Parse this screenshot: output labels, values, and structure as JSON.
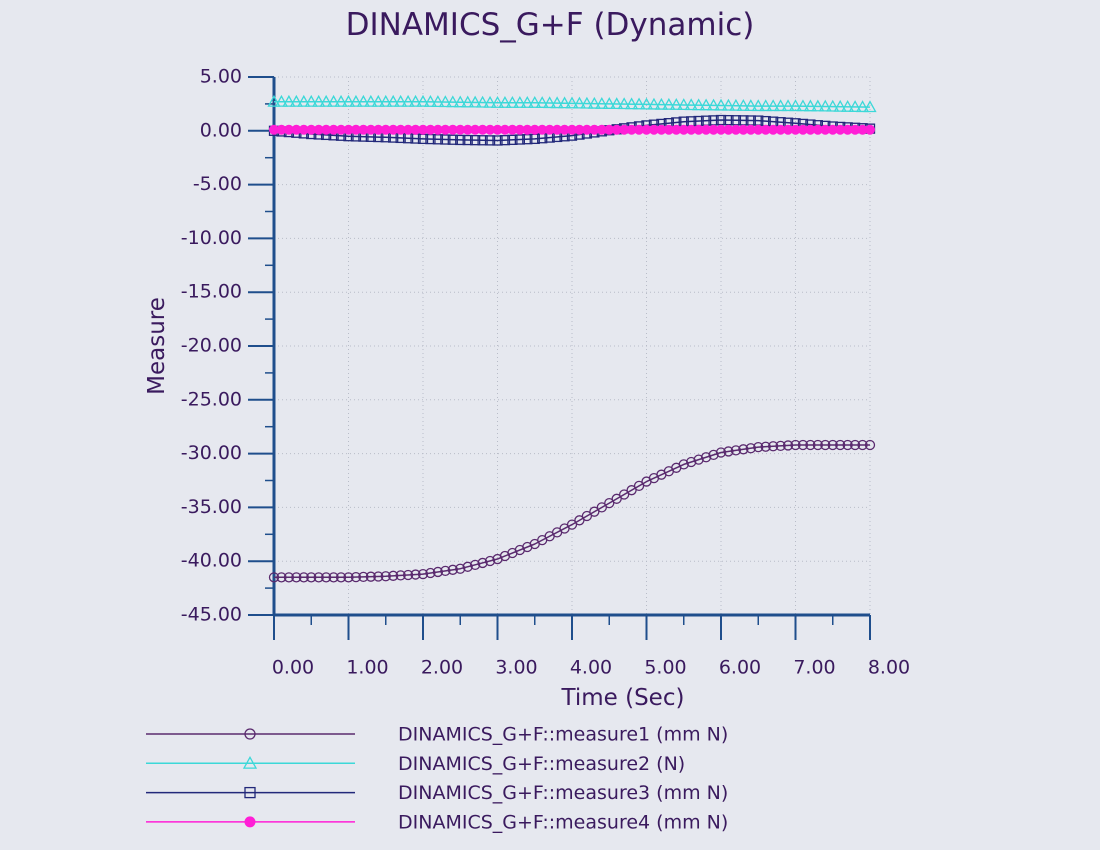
{
  "chart_data": {
    "type": "line",
    "title": "DINAMICS_G+F (Dynamic)",
    "xlabel": "Time (Sec)",
    "ylabel": "Measure",
    "xlim": [
      0,
      8
    ],
    "ylim": [
      -45,
      5
    ],
    "grid": true,
    "x_ticks": [
      "0.00",
      "1.00",
      "2.00",
      "3.00",
      "4.00",
      "5.00",
      "6.00",
      "7.00",
      "8.00"
    ],
    "y_ticks": [
      "5.00",
      "0.00",
      "-5.00",
      "-10.00",
      "-15.00",
      "-20.00",
      "-25.00",
      "-30.00",
      "-35.00",
      "-40.00",
      "-45.00"
    ],
    "legend_position": "bottom",
    "x": [
      0,
      0.5,
      1,
      1.5,
      2,
      2.5,
      3,
      3.5,
      4,
      4.5,
      5,
      5.5,
      6,
      6.5,
      7,
      7.5,
      8
    ],
    "series": [
      {
        "name": "DINAMICS_G+F::measure1 (mm N)",
        "color": "#5a2a6e",
        "marker": "circle-open",
        "values": [
          -41.5,
          -41.5,
          -41.5,
          -41.4,
          -41.2,
          -40.7,
          -39.8,
          -38.4,
          -36.6,
          -34.6,
          -32.6,
          -31.0,
          -29.9,
          -29.4,
          -29.2,
          -29.2,
          -29.2
        ]
      },
      {
        "name": "DINAMICS_G+F::measure2 (N)",
        "color": "#3cd8d8",
        "marker": "triangle-open",
        "values": [
          2.7,
          2.7,
          2.7,
          2.7,
          2.7,
          2.65,
          2.6,
          2.6,
          2.55,
          2.5,
          2.45,
          2.4,
          2.35,
          2.3,
          2.3,
          2.25,
          2.2
        ]
      },
      {
        "name": "DINAMICS_G+F::measure3 (mm N)",
        "color": "#22287a",
        "marker": "square-open",
        "values": [
          0.0,
          -0.3,
          -0.5,
          -0.6,
          -0.75,
          -0.85,
          -0.9,
          -0.75,
          -0.45,
          0.05,
          0.5,
          0.85,
          1.0,
          0.95,
          0.7,
          0.4,
          0.2
        ]
      },
      {
        "name": "DINAMICS_G+F::measure4 (mm N)",
        "color": "#ff1fd6",
        "marker": "circle-filled",
        "values": [
          0.1,
          0.1,
          0.1,
          0.1,
          0.1,
          0.1,
          0.1,
          0.1,
          0.1,
          0.1,
          0.1,
          0.1,
          0.1,
          0.1,
          0.1,
          0.1,
          0.1
        ]
      }
    ]
  }
}
